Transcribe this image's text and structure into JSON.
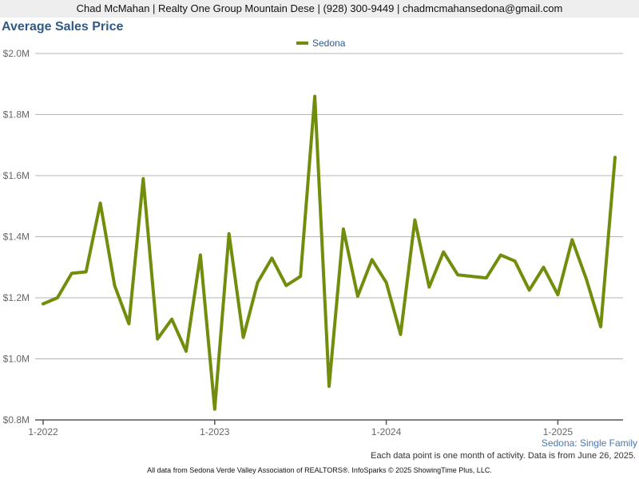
{
  "header": {
    "contact_line": "Chad McMahan | Realty One Group Mountain Dese | (928) 300-9449 | chadmcmahansedona@gmail.com"
  },
  "chart_data": {
    "type": "line",
    "title": "Average Sales Price",
    "subtitle": "Sedona: Single Family",
    "xlabel": "",
    "ylabel": "",
    "ylim": [
      800000,
      2000000
    ],
    "yticks": [
      800000,
      1000000,
      1200000,
      1400000,
      1600000,
      1800000,
      2000000
    ],
    "ytick_labels": [
      "$0.8M",
      "$1.0M",
      "$1.2M",
      "$1.4M",
      "$1.6M",
      "$1.8M",
      "$2.0M"
    ],
    "xtick_labels": [
      "1-2022",
      "1-2023",
      "1-2024",
      "1-2025"
    ],
    "xtick_months": [
      "2022-01",
      "2023-01",
      "2024-01",
      "2025-01"
    ],
    "x": [
      "2022-01",
      "2022-02",
      "2022-03",
      "2022-04",
      "2022-05",
      "2022-06",
      "2022-07",
      "2022-08",
      "2022-09",
      "2022-10",
      "2022-11",
      "2022-12",
      "2023-01",
      "2023-02",
      "2023-03",
      "2023-04",
      "2023-05",
      "2023-06",
      "2023-07",
      "2023-08",
      "2023-09",
      "2023-10",
      "2023-11",
      "2023-12",
      "2024-01",
      "2024-02",
      "2024-03",
      "2024-04",
      "2024-05",
      "2024-06",
      "2024-07",
      "2024-08",
      "2024-09",
      "2024-10",
      "2024-11",
      "2024-12",
      "2025-01",
      "2025-02",
      "2025-03",
      "2025-04",
      "2025-05"
    ],
    "grid": true,
    "legend": "top-center",
    "series": [
      {
        "name": "Sedona",
        "color": "#718d0c",
        "values": [
          1180000,
          1200000,
          1280000,
          1285000,
          1510000,
          1240000,
          1115000,
          1590000,
          1065000,
          1130000,
          1025000,
          1340000,
          835000,
          1410000,
          1070000,
          1250000,
          1330000,
          1240000,
          1270000,
          1860000,
          910000,
          1425000,
          1205000,
          1325000,
          1250000,
          1080000,
          1455000,
          1235000,
          1350000,
          1275000,
          1270000,
          1265000,
          1340000,
          1320000,
          1225000,
          1300000,
          1210000,
          1390000,
          1260000,
          1105000,
          1660000
        ]
      }
    ]
  },
  "footer": {
    "note": "Each data point is one month of activity. Data is from June 26, 2025.",
    "source": "All data from Sedona Verde Valley Association of REALTORS®. InfoSparks © 2025 ShowingTime Plus, LLC."
  }
}
